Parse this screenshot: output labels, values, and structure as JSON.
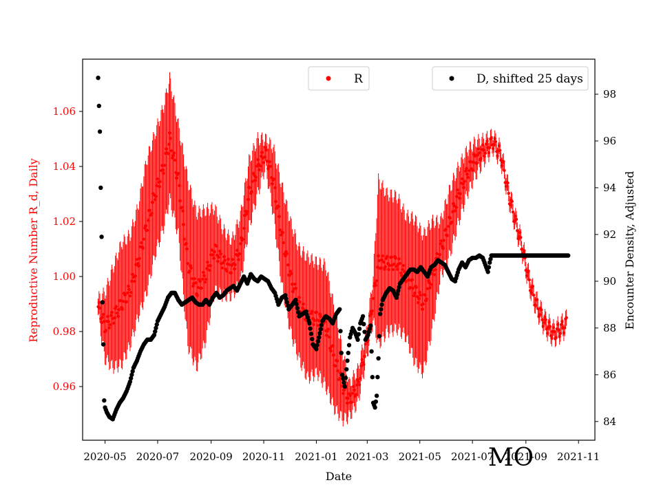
{
  "chart_data": {
    "type": "scatter",
    "title": "",
    "annotation": "MO",
    "xlabel": "Date",
    "ylabel_left": "Reproductive Number R_d, Daily",
    "ylabel_right": "Encounter Density, Adjusted",
    "x_range": [
      "2020-04-05",
      "2021-11-20"
    ],
    "x_ticks": [
      "2020-05",
      "2020-07",
      "2020-09",
      "2020-11",
      "2021-01",
      "2021-03",
      "2021-05",
      "2021-07",
      "2021-09",
      "2021-11"
    ],
    "y_left_range": [
      0.9405,
      1.079
    ],
    "y_left_ticks": [
      "0.96",
      "0.98",
      "1.00",
      "1.02",
      "1.04",
      "1.06"
    ],
    "y_right_range": [
      83.2,
      99.5
    ],
    "y_right_ticks": [
      "84",
      "86",
      "88",
      "90",
      "92",
      "94",
      "96",
      "98"
    ],
    "colors": {
      "R": "#ff0000",
      "D": "#000000"
    },
    "series": [
      {
        "name": "R",
        "axis": "left",
        "legend": "R",
        "legend_position": "top-center",
        "points": [
          [
            "2020-04-23",
            0.989,
            0.003
          ],
          [
            "2020-05-01",
            0.982,
            0.012
          ],
          [
            "2020-05-10",
            0.985,
            0.018
          ],
          [
            "2020-05-20",
            0.99,
            0.022
          ],
          [
            "2020-05-30",
            0.995,
            0.02
          ],
          [
            "2020-06-08",
            1.005,
            0.02
          ],
          [
            "2020-06-18",
            1.018,
            0.024
          ],
          [
            "2020-06-28",
            1.03,
            0.022
          ],
          [
            "2020-07-08",
            1.04,
            0.022
          ],
          [
            "2020-07-15",
            1.05,
            0.022
          ],
          [
            "2020-07-25",
            1.035,
            0.02
          ],
          [
            "2020-08-05",
            1.005,
            0.03
          ],
          [
            "2020-08-15",
            0.995,
            0.028
          ],
          [
            "2020-08-25",
            1.0,
            0.024
          ],
          [
            "2020-09-05",
            1.01,
            0.015
          ],
          [
            "2020-09-15",
            1.005,
            0.012
          ],
          [
            "2020-09-25",
            1.003,
            0.01
          ],
          [
            "2020-10-05",
            1.01,
            0.012
          ],
          [
            "2020-10-15",
            1.03,
            0.012
          ],
          [
            "2020-10-25",
            1.04,
            0.01
          ],
          [
            "2020-11-03",
            1.045,
            0.005
          ],
          [
            "2020-11-12",
            1.035,
            0.012
          ],
          [
            "2020-11-22",
            1.015,
            0.018
          ],
          [
            "2020-12-02",
            1.0,
            0.02
          ],
          [
            "2020-12-12",
            0.99,
            0.02
          ],
          [
            "2020-12-22",
            0.985,
            0.022
          ],
          [
            "2021-01-02",
            0.985,
            0.02
          ],
          [
            "2021-01-12",
            0.982,
            0.022
          ],
          [
            "2021-01-22",
            0.97,
            0.018
          ],
          [
            "2021-02-01",
            0.96,
            0.012
          ],
          [
            "2021-02-08",
            0.955,
            0.006
          ],
          [
            "2021-02-18",
            0.96,
            0.006
          ],
          [
            "2021-02-28",
            0.975,
            0.005
          ],
          [
            "2021-03-08",
            0.992,
            0.008
          ],
          [
            "2021-03-14",
            1.005,
            0.03
          ],
          [
            "2021-03-24",
            1.005,
            0.025
          ],
          [
            "2021-04-05",
            1.005,
            0.024
          ],
          [
            "2021-04-15",
            1.0,
            0.022
          ],
          [
            "2021-04-25",
            0.995,
            0.026
          ],
          [
            "2021-05-05",
            0.99,
            0.025
          ],
          [
            "2021-05-15",
            1.0,
            0.02
          ],
          [
            "2021-05-25",
            1.01,
            0.01
          ],
          [
            "2021-06-05",
            1.02,
            0.012
          ],
          [
            "2021-06-15",
            1.03,
            0.01
          ],
          [
            "2021-06-25",
            1.038,
            0.008
          ],
          [
            "2021-07-05",
            1.043,
            0.006
          ],
          [
            "2021-07-15",
            1.046,
            0.004
          ],
          [
            "2021-07-25",
            1.049,
            0.003
          ],
          [
            "2021-08-03",
            1.044,
            0.003
          ],
          [
            "2021-08-12",
            1.03,
            0.003
          ],
          [
            "2021-08-20",
            1.02,
            0.003
          ],
          [
            "2021-08-28",
            1.01,
            0.003
          ],
          [
            "2021-09-05",
            0.998,
            0.003
          ],
          [
            "2021-09-13",
            0.99,
            0.003
          ],
          [
            "2021-09-23",
            0.983,
            0.003
          ],
          [
            "2021-10-03",
            0.979,
            0.003
          ],
          [
            "2021-10-12",
            0.981,
            0.003
          ],
          [
            "2021-10-18",
            0.983,
            0.003
          ]
        ]
      },
      {
        "name": "D, shifted 25 days",
        "axis": "right",
        "legend": "D, shifted 25 days",
        "legend_position": "top-right",
        "points": [
          [
            "2020-04-23",
            98.7
          ],
          [
            "2020-04-24",
            97.5
          ],
          [
            "2020-04-25",
            96.4
          ],
          [
            "2020-04-26",
            94.0
          ],
          [
            "2020-04-27",
            91.9
          ],
          [
            "2020-04-28",
            89.1
          ],
          [
            "2020-04-29",
            87.3
          ],
          [
            "2020-04-30",
            84.9
          ],
          [
            "2020-05-01",
            84.6
          ],
          [
            "2020-05-03",
            84.4
          ],
          [
            "2020-05-06",
            84.2
          ],
          [
            "2020-05-10",
            84.1
          ],
          [
            "2020-05-14",
            84.5
          ],
          [
            "2020-05-18",
            84.8
          ],
          [
            "2020-05-22",
            85.0
          ],
          [
            "2020-05-26",
            85.3
          ],
          [
            "2020-05-30",
            85.7
          ],
          [
            "2020-06-03",
            86.3
          ],
          [
            "2020-06-07",
            86.6
          ],
          [
            "2020-06-11",
            87.0
          ],
          [
            "2020-06-15",
            87.3
          ],
          [
            "2020-06-19",
            87.5
          ],
          [
            "2020-06-23",
            87.5
          ],
          [
            "2020-06-27",
            87.7
          ],
          [
            "2020-07-01",
            88.3
          ],
          [
            "2020-07-05",
            88.6
          ],
          [
            "2020-07-09",
            88.9
          ],
          [
            "2020-07-13",
            89.3
          ],
          [
            "2020-07-17",
            89.5
          ],
          [
            "2020-07-21",
            89.5
          ],
          [
            "2020-07-25",
            89.2
          ],
          [
            "2020-07-29",
            89.0
          ],
          [
            "2020-08-02",
            89.1
          ],
          [
            "2020-08-06",
            89.2
          ],
          [
            "2020-08-10",
            89.3
          ],
          [
            "2020-08-14",
            89.1
          ],
          [
            "2020-08-18",
            89.0
          ],
          [
            "2020-08-22",
            89.0
          ],
          [
            "2020-08-26",
            89.2
          ],
          [
            "2020-08-30",
            89.0
          ],
          [
            "2020-09-03",
            89.3
          ],
          [
            "2020-09-07",
            89.5
          ],
          [
            "2020-09-11",
            89.3
          ],
          [
            "2020-09-15",
            89.4
          ],
          [
            "2020-09-19",
            89.6
          ],
          [
            "2020-09-23",
            89.7
          ],
          [
            "2020-09-27",
            89.8
          ],
          [
            "2020-10-01",
            89.6
          ],
          [
            "2020-10-05",
            89.9
          ],
          [
            "2020-10-09",
            90.2
          ],
          [
            "2020-10-13",
            89.9
          ],
          [
            "2020-10-17",
            90.3
          ],
          [
            "2020-10-21",
            90.1
          ],
          [
            "2020-10-25",
            90.0
          ],
          [
            "2020-10-29",
            90.2
          ],
          [
            "2020-11-02",
            90.1
          ],
          [
            "2020-11-06",
            90.0
          ],
          [
            "2020-11-10",
            89.7
          ],
          [
            "2020-11-14",
            89.5
          ],
          [
            "2020-11-18",
            89.0
          ],
          [
            "2020-11-22",
            89.3
          ],
          [
            "2020-11-26",
            89.4
          ],
          [
            "2020-11-30",
            88.8
          ],
          [
            "2020-12-04",
            89.0
          ],
          [
            "2020-12-08",
            89.2
          ],
          [
            "2020-12-12",
            88.5
          ],
          [
            "2020-12-16",
            88.6
          ],
          [
            "2020-12-20",
            88.7
          ],
          [
            "2020-12-24",
            88.2
          ],
          [
            "2020-12-28",
            87.3
          ],
          [
            "2021-01-01",
            87.1
          ],
          [
            "2021-01-04",
            87.6
          ],
          [
            "2021-01-08",
            88.3
          ],
          [
            "2021-01-12",
            88.5
          ],
          [
            "2021-01-16",
            88.4
          ],
          [
            "2021-01-20",
            88.2
          ],
          [
            "2021-01-24",
            88.6
          ],
          [
            "2021-01-28",
            88.8
          ],
          [
            "2021-01-31",
            86.0
          ],
          [
            "2021-02-03",
            85.5
          ],
          [
            "2021-02-06",
            86.6
          ],
          [
            "2021-02-09",
            87.6
          ],
          [
            "2021-02-12",
            88.0
          ],
          [
            "2021-02-15",
            87.8
          ],
          [
            "2021-02-18",
            87.5
          ],
          [
            "2021-02-21",
            88.2
          ],
          [
            "2021-02-24",
            88.5
          ],
          [
            "2021-02-27",
            87.5
          ],
          [
            "2021-03-02",
            87.7
          ],
          [
            "2021-03-05",
            88.1
          ],
          [
            "2021-03-08",
            84.8
          ],
          [
            "2021-03-10",
            84.6
          ],
          [
            "2021-03-12",
            85.1
          ],
          [
            "2021-03-14",
            86.7
          ],
          [
            "2021-03-16",
            88.6
          ],
          [
            "2021-03-19",
            89.2
          ],
          [
            "2021-03-23",
            89.5
          ],
          [
            "2021-03-27",
            89.7
          ],
          [
            "2021-03-31",
            89.6
          ],
          [
            "2021-04-04",
            89.3
          ],
          [
            "2021-04-08",
            89.9
          ],
          [
            "2021-04-12",
            90.1
          ],
          [
            "2021-04-16",
            90.3
          ],
          [
            "2021-04-20",
            90.5
          ],
          [
            "2021-04-24",
            90.5
          ],
          [
            "2021-04-28",
            90.4
          ],
          [
            "2021-05-02",
            90.6
          ],
          [
            "2021-05-06",
            90.4
          ],
          [
            "2021-05-10",
            90.2
          ],
          [
            "2021-05-14",
            90.6
          ],
          [
            "2021-05-18",
            90.7
          ],
          [
            "2021-05-22",
            90.9
          ],
          [
            "2021-05-26",
            90.8
          ],
          [
            "2021-05-30",
            90.7
          ],
          [
            "2021-06-03",
            90.4
          ],
          [
            "2021-06-07",
            90.1
          ],
          [
            "2021-06-11",
            90.0
          ],
          [
            "2021-06-15",
            90.5
          ],
          [
            "2021-06-19",
            90.8
          ],
          [
            "2021-06-23",
            90.6
          ],
          [
            "2021-06-27",
            90.9
          ],
          [
            "2021-07-01",
            91.0
          ],
          [
            "2021-07-05",
            91.0
          ],
          [
            "2021-07-09",
            91.1
          ],
          [
            "2021-07-13",
            91.0
          ],
          [
            "2021-07-17",
            90.6
          ],
          [
            "2021-07-19",
            90.4
          ],
          [
            "2021-07-21",
            90.8
          ],
          [
            "2021-07-23",
            91.1
          ],
          [
            "2021-08-01",
            91.1
          ],
          [
            "2021-08-15",
            91.1
          ],
          [
            "2021-09-01",
            91.1
          ],
          [
            "2021-09-15",
            91.1
          ],
          [
            "2021-10-01",
            91.1
          ],
          [
            "2021-10-15",
            91.1
          ],
          [
            "2021-10-20",
            91.1
          ]
        ]
      }
    ]
  }
}
